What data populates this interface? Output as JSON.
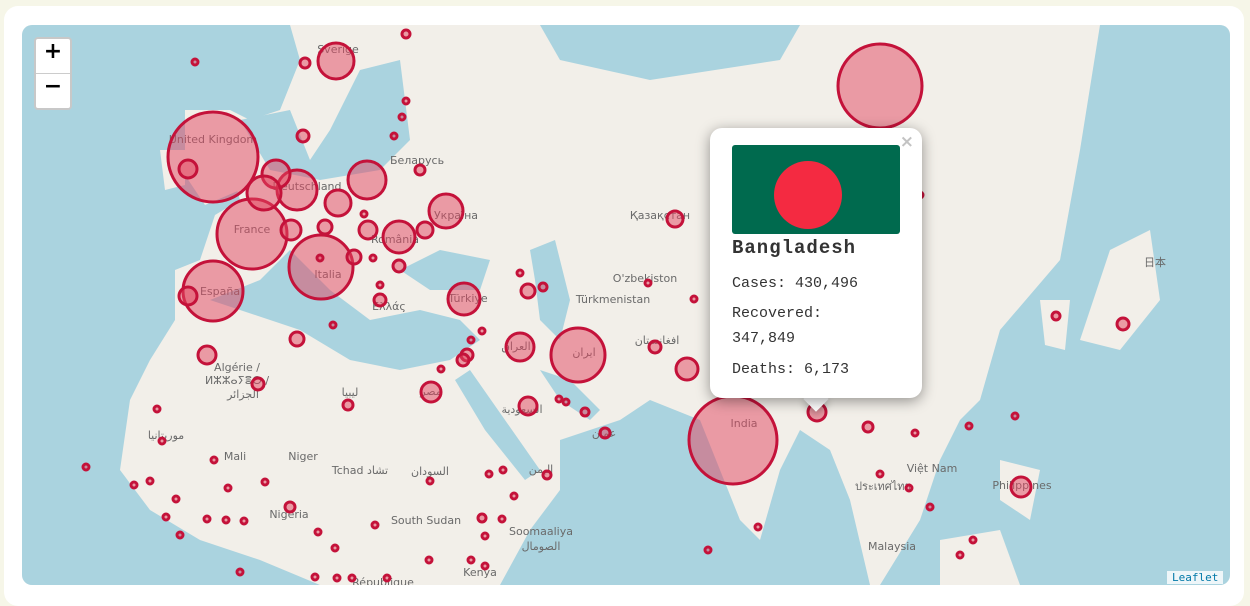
{
  "zoom": {
    "in": "+",
    "out": "−"
  },
  "popup": {
    "close": "×",
    "country": "Bangladesh",
    "cases": "Cases: 430,496",
    "recovered": "Recovered: 347,849",
    "deaths": "Deaths: 6,173"
  },
  "attribution": "Leaflet",
  "map": {
    "labels": [
      "Sverige",
      "United Kingdom",
      "Беларусь",
      "Deutschland",
      "France",
      "Україна",
      "România",
      "Italia",
      "España",
      "Ελλάς",
      "Türkiye",
      "Қазақстан",
      "O'zbekiston",
      "Türkmenistan",
      "العراق",
      "ایران",
      "افغانستان",
      "Algérie /",
      "ⵍⵣⵣⴰⵢⴻⵔ /",
      "الجزائر",
      "ليبيا",
      "مصر",
      "السعودية",
      "موريتانيا",
      "Mali",
      "Niger",
      "Tchad تشاد",
      "السودان",
      "اليمن",
      "Nigeria",
      "South Sudan",
      "Soomaaliya",
      "الصومال",
      "Kenya",
      "République",
      "India",
      "日本",
      "Việt Nam",
      "ประเทศไทย",
      "Philippines",
      "Malaysia",
      "عمان"
    ]
  }
}
